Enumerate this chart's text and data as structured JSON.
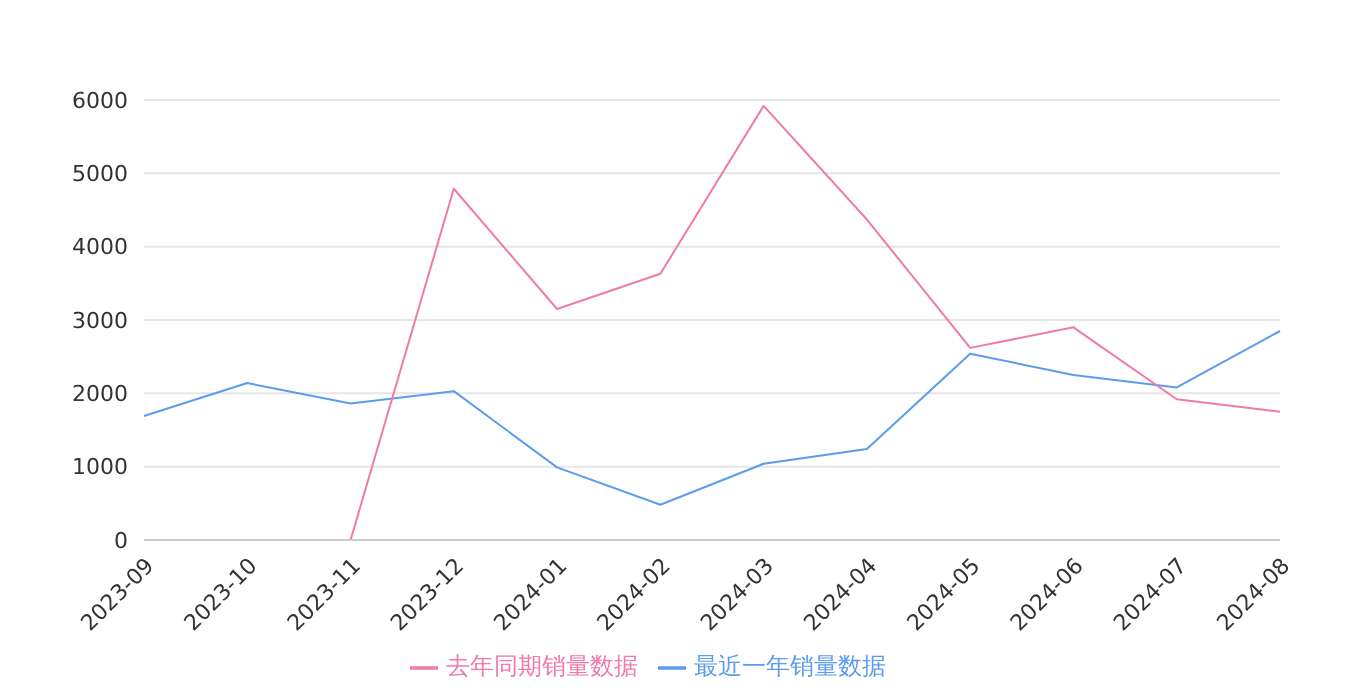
{
  "chart_data": {
    "type": "line",
    "categories": [
      "2023-09",
      "2023-10",
      "2023-11",
      "2023-12",
      "2024-01",
      "2024-02",
      "2024-03",
      "2024-04",
      "2024-05",
      "2024-06",
      "2024-07",
      "2024-08"
    ],
    "series": [
      {
        "name": "最近一年销量数据",
        "color": "#5b9bf0",
        "values": [
          1690,
          2140,
          1860,
          2030,
          990,
          480,
          1040,
          1240,
          2540,
          2250,
          2080,
          2850
        ]
      },
      {
        "name": "去年同期销量数据",
        "color": "#f07aa8",
        "values": [
          null,
          null,
          0,
          4790,
          3150,
          3630,
          5920,
          4370,
          2620,
          2900,
          1920,
          1750
        ]
      }
    ],
    "ylim": [
      0,
      6000
    ],
    "yticks": [
      0,
      1000,
      2000,
      3000,
      4000,
      5000,
      6000
    ],
    "grid": "y",
    "legend": "bottom",
    "marker": "none",
    "line_style": "solid"
  }
}
